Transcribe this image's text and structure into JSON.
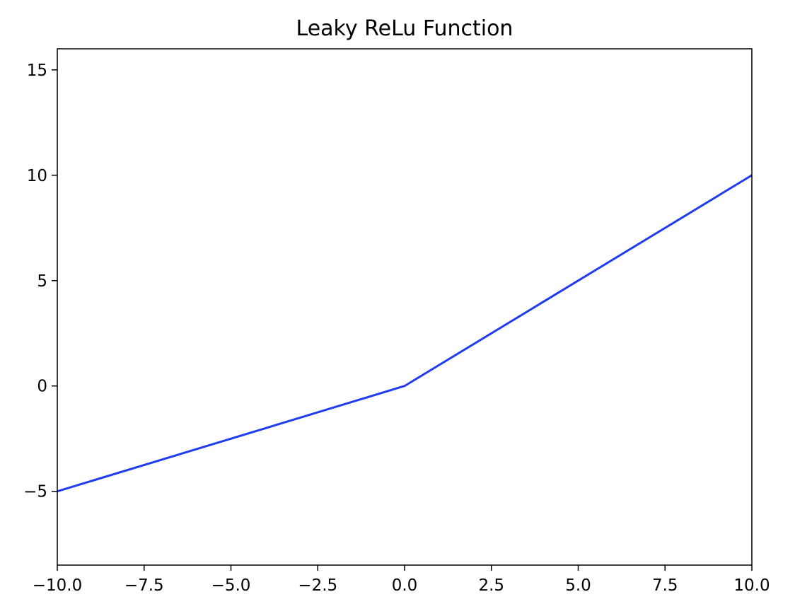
{
  "chart_data": {
    "type": "line",
    "title": "Leaky ReLu Function",
    "xlabel": "",
    "ylabel": "",
    "xlim": [
      -10,
      10
    ],
    "ylim": [
      -8.5,
      16
    ],
    "x_ticks": [
      -10,
      -7.5,
      -5,
      -2.5,
      0,
      2.5,
      5,
      7.5,
      10
    ],
    "x_tick_labels": [
      "−10.0",
      "−7.5",
      "−5.0",
      "−2.5",
      "0.0",
      "2.5",
      "5.0",
      "7.5",
      "10.0"
    ],
    "y_ticks": [
      -5,
      0,
      5,
      10,
      15
    ],
    "y_tick_labels": [
      "−5",
      "0",
      "5",
      "10",
      "15"
    ],
    "grid": false,
    "series": [
      {
        "color": "#1f3cf0",
        "x": [
          -10,
          0,
          10
        ],
        "y": [
          -5,
          0,
          10
        ]
      }
    ]
  }
}
